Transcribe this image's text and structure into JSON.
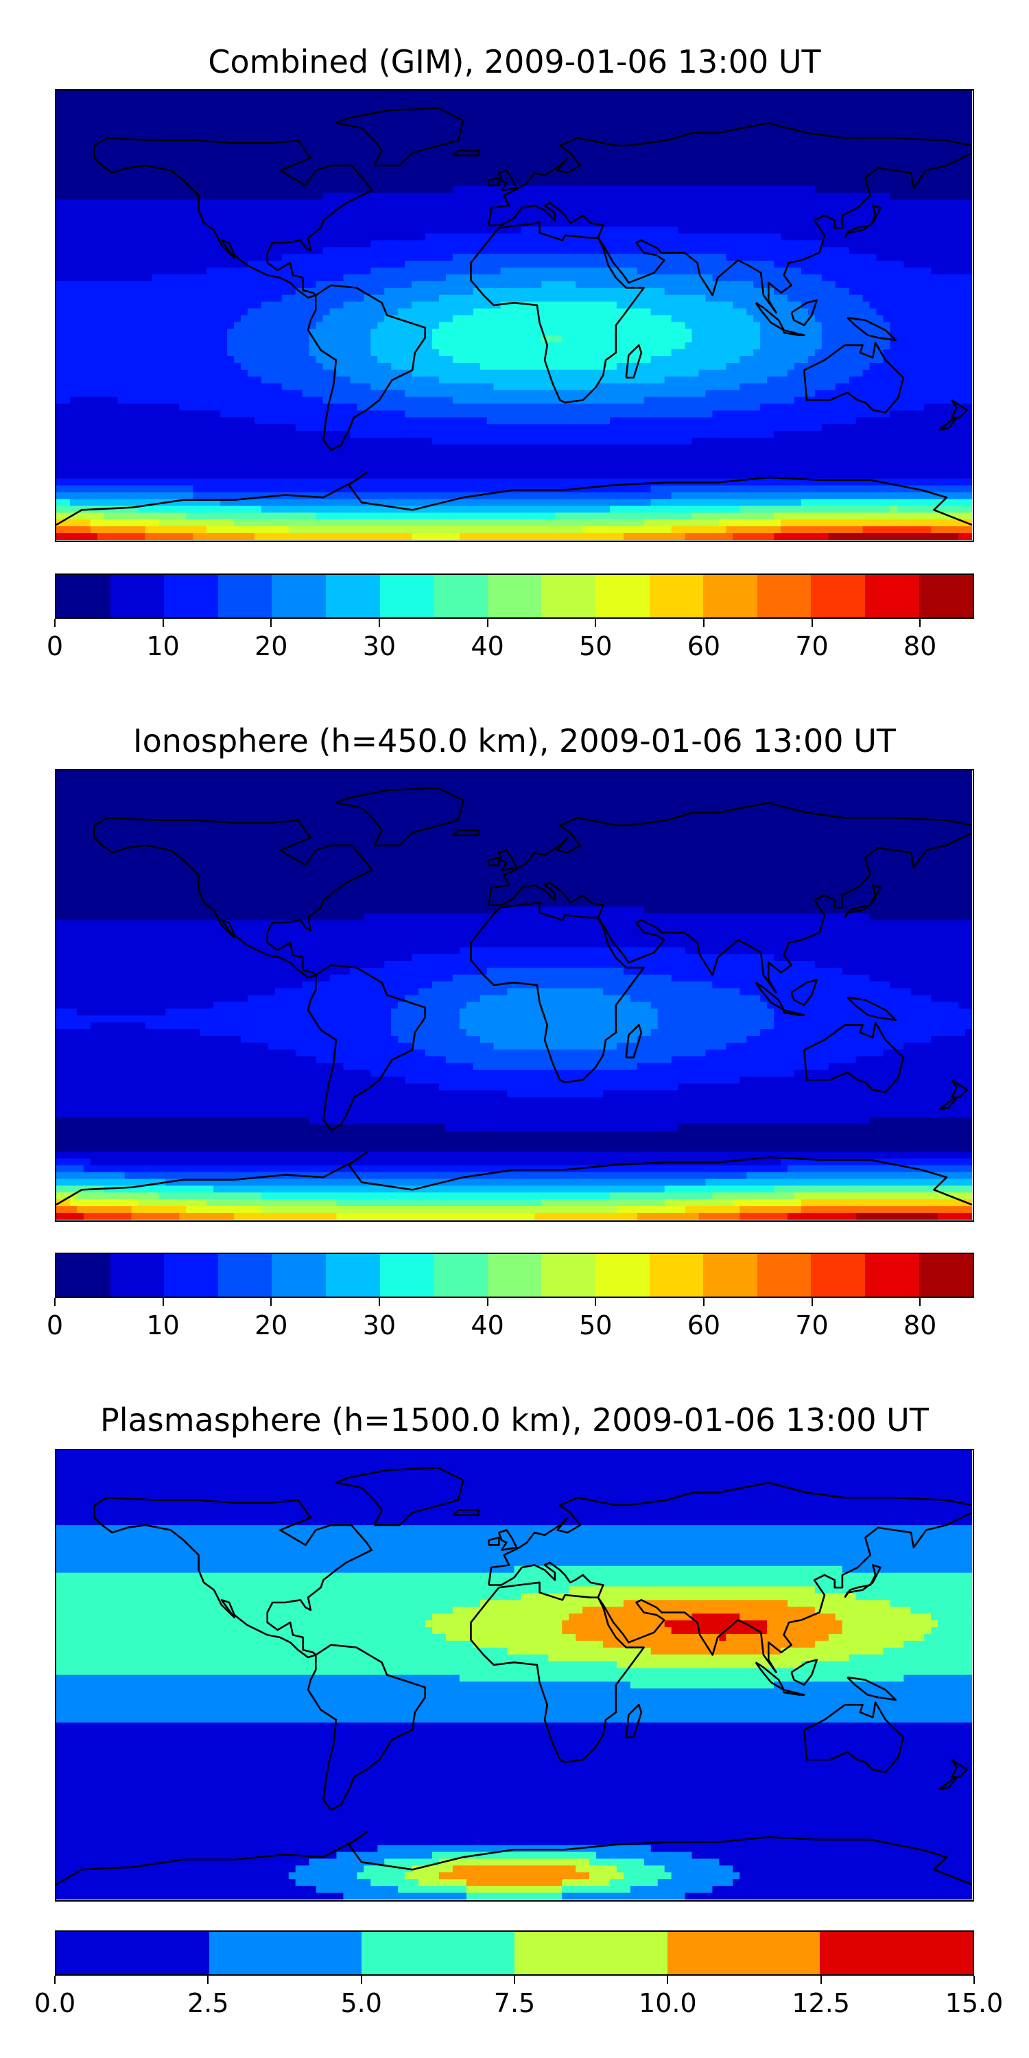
{
  "panels": [
    {
      "title": "Combined (GIM), 2009-01-06 13:00 UT",
      "colorbar": {
        "levels": [
          0,
          5,
          10,
          15,
          20,
          25,
          30,
          35,
          40,
          45,
          50,
          55,
          60,
          65,
          70,
          75,
          80,
          85
        ],
        "colors": [
          "#00008f",
          "#0000d8",
          "#0018ff",
          "#0050ff",
          "#0088ff",
          "#00c0ff",
          "#18ffe6",
          "#50ffae",
          "#88ff76",
          "#c0ff3e",
          "#e6ff18",
          "#ffd400",
          "#ffa000",
          "#ff6c00",
          "#ff3800",
          "#e60000",
          "#a80000"
        ],
        "tick_labels": [
          "0",
          "10",
          "20",
          "30",
          "40",
          "50",
          "60",
          "70",
          "80"
        ],
        "tick_values": [
          0,
          10,
          20,
          30,
          40,
          50,
          60,
          70,
          80
        ],
        "range": [
          0,
          85
        ]
      },
      "field": "combined"
    },
    {
      "title": "Ionosphere  (h=450.0 km), 2009-01-06 13:00 UT",
      "colorbar": {
        "levels": [
          0,
          5,
          10,
          15,
          20,
          25,
          30,
          35,
          40,
          45,
          50,
          55,
          60,
          65,
          70,
          75,
          80,
          85
        ],
        "colors": [
          "#00008f",
          "#0000d8",
          "#0018ff",
          "#0050ff",
          "#0088ff",
          "#00c0ff",
          "#18ffe6",
          "#50ffae",
          "#88ff76",
          "#c0ff3e",
          "#e6ff18",
          "#ffd400",
          "#ffa000",
          "#ff6c00",
          "#ff3800",
          "#e60000",
          "#a80000"
        ],
        "tick_labels": [
          "0",
          "10",
          "20",
          "30",
          "40",
          "50",
          "60",
          "70",
          "80"
        ],
        "tick_values": [
          0,
          10,
          20,
          30,
          40,
          50,
          60,
          70,
          80
        ],
        "range": [
          0,
          85
        ]
      },
      "field": "ionosphere"
    },
    {
      "title": "Plasmasphere (h=1500.0 km), 2009-01-06 13:00 UT",
      "colorbar": {
        "levels": [
          0,
          2.5,
          5,
          7.5,
          10,
          12.5,
          15
        ],
        "colors": [
          "#0000d8",
          "#0088ff",
          "#35ffc2",
          "#c0ff3e",
          "#ff9500",
          "#e00000"
        ],
        "tick_labels": [
          "0.0",
          "2.5",
          "5.0",
          "7.5",
          "10.0",
          "12.5",
          "15.0"
        ],
        "tick_values": [
          0,
          2.5,
          5,
          7.5,
          10,
          12.5,
          15
        ],
        "range": [
          0,
          15
        ]
      },
      "field": "plasmasphere"
    }
  ],
  "coastline_color": "#000000"
}
